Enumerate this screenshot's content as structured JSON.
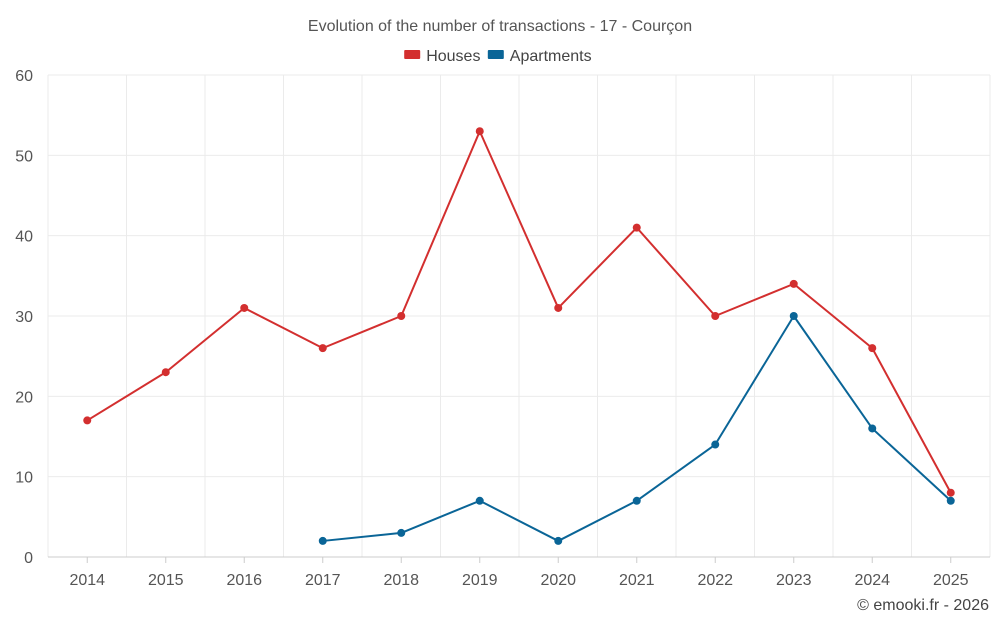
{
  "chart_data": {
    "type": "line",
    "title": "Evolution of the number of transactions - 17 - Courçon",
    "categories": [
      "2014",
      "2015",
      "2016",
      "2017",
      "2018",
      "2019",
      "2020",
      "2021",
      "2022",
      "2023",
      "2024",
      "2025"
    ],
    "ylim": [
      0,
      60
    ],
    "yticks": [
      0,
      10,
      20,
      30,
      40,
      50,
      60
    ],
    "grid": true,
    "legend_position": "top-center",
    "series": [
      {
        "name": "Houses",
        "color": "#d32f2f",
        "values": [
          17,
          23,
          31,
          26,
          30,
          53,
          31,
          41,
          30,
          34,
          26,
          8
        ]
      },
      {
        "name": "Apartments",
        "color": "#0a6597",
        "values": [
          null,
          null,
          null,
          2,
          3,
          7,
          2,
          7,
          14,
          30,
          16,
          7
        ]
      }
    ]
  },
  "credit": "© emooki.fr - 2026"
}
